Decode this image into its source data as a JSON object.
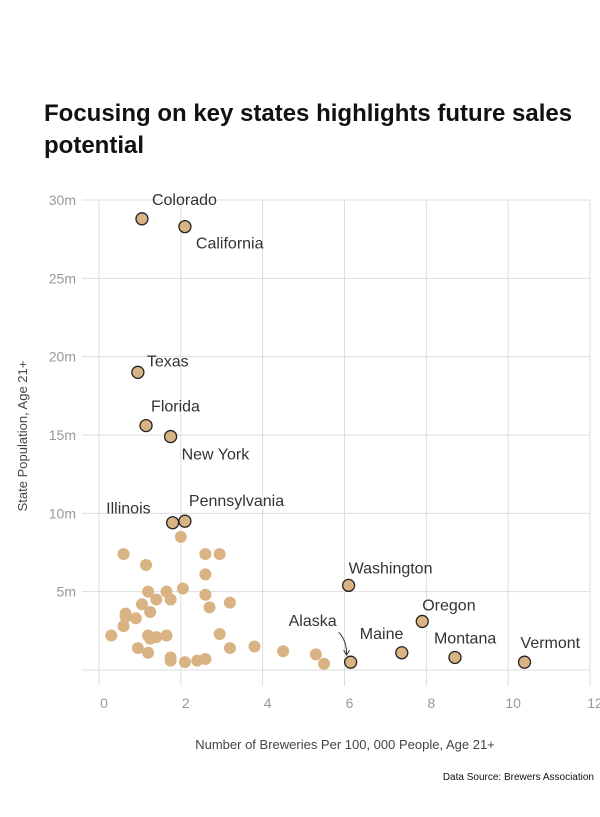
{
  "chart_data": {
    "type": "scatter",
    "title": "Focusing on key states highlights future sales potential",
    "xlabel": "Number of Breweries Per 100, 000 People, Age 21+",
    "ylabel": "State Population, Age 21+",
    "xlim": [
      0,
      12
    ],
    "ylim": [
      0,
      30
    ],
    "x_ticks": [
      "0",
      "2",
      "4",
      "6",
      "8",
      "10",
      "12"
    ],
    "y_ticks": [
      "",
      "5m",
      "10m",
      "15m",
      "20m",
      "25m",
      "30m"
    ],
    "grid": true,
    "colors": {
      "point_fill": "#D9B383",
      "labeled_stroke": "#222222",
      "grid": "#DDDDDD"
    },
    "labeled_points": [
      {
        "label": "Colorado",
        "x": 1.05,
        "y": 28.8
      },
      {
        "label": "California",
        "x": 2.1,
        "y": 28.3
      },
      {
        "label": "Texas",
        "x": 0.95,
        "y": 19.0
      },
      {
        "label": "Florida",
        "x": 1.15,
        "y": 15.6
      },
      {
        "label": "New York",
        "x": 1.75,
        "y": 14.9
      },
      {
        "label": "Illinois",
        "x": 1.8,
        "y": 9.4
      },
      {
        "label": "Pennsylvania",
        "x": 2.1,
        "y": 9.5
      },
      {
        "label": "Washington",
        "x": 6.1,
        "y": 5.4
      },
      {
        "label": "Oregon",
        "x": 7.9,
        "y": 3.1
      },
      {
        "label": "Alaska",
        "x": 6.15,
        "y": 0.5
      },
      {
        "label": "Maine",
        "x": 7.4,
        "y": 1.1
      },
      {
        "label": "Montana",
        "x": 8.7,
        "y": 0.8
      },
      {
        "label": "Vermont",
        "x": 10.4,
        "y": 0.5
      }
    ],
    "other_points": [
      {
        "x": 0.6,
        "y": 7.4
      },
      {
        "x": 1.15,
        "y": 6.7
      },
      {
        "x": 2.0,
        "y": 8.5
      },
      {
        "x": 2.6,
        "y": 7.4
      },
      {
        "x": 2.95,
        "y": 7.4
      },
      {
        "x": 2.6,
        "y": 6.1
      },
      {
        "x": 2.05,
        "y": 5.2
      },
      {
        "x": 1.65,
        "y": 5.0
      },
      {
        "x": 1.2,
        "y": 5.0
      },
      {
        "x": 1.4,
        "y": 4.5
      },
      {
        "x": 1.75,
        "y": 4.5
      },
      {
        "x": 2.6,
        "y": 4.8
      },
      {
        "x": 1.05,
        "y": 4.2
      },
      {
        "x": 2.7,
        "y": 4.0
      },
      {
        "x": 3.2,
        "y": 4.3
      },
      {
        "x": 1.25,
        "y": 3.7
      },
      {
        "x": 0.65,
        "y": 3.6
      },
      {
        "x": 0.65,
        "y": 3.4
      },
      {
        "x": 0.9,
        "y": 3.3
      },
      {
        "x": 0.6,
        "y": 2.8
      },
      {
        "x": 0.3,
        "y": 2.2
      },
      {
        "x": 1.2,
        "y": 2.2
      },
      {
        "x": 1.4,
        "y": 2.1
      },
      {
        "x": 1.65,
        "y": 2.2
      },
      {
        "x": 1.25,
        "y": 2.0
      },
      {
        "x": 2.95,
        "y": 2.3
      },
      {
        "x": 0.95,
        "y": 1.4
      },
      {
        "x": 1.2,
        "y": 1.1
      },
      {
        "x": 3.2,
        "y": 1.4
      },
      {
        "x": 3.8,
        "y": 1.5
      },
      {
        "x": 4.5,
        "y": 1.2
      },
      {
        "x": 5.3,
        "y": 1.0
      },
      {
        "x": 5.5,
        "y": 0.4
      },
      {
        "x": 1.75,
        "y": 0.8
      },
      {
        "x": 1.75,
        "y": 0.6
      },
      {
        "x": 2.1,
        "y": 0.5
      },
      {
        "x": 2.4,
        "y": 0.6
      },
      {
        "x": 2.6,
        "y": 0.7
      }
    ]
  },
  "footer": {
    "source": "Data Source: Brewers Association"
  }
}
